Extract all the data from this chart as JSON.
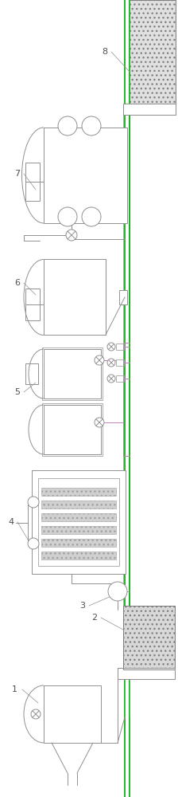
{
  "bg_color": "#ffffff",
  "line_color": "#909090",
  "green_line": "#00aa00",
  "pink_line": "#c080c0",
  "label_color": "#505050",
  "fig_width": 2.24,
  "fig_height": 10.0
}
